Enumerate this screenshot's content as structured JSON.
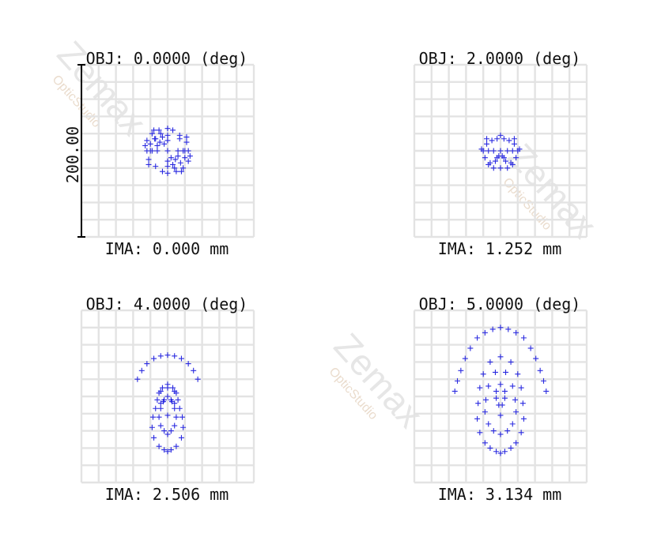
{
  "watermark": {
    "brand": "Zemax",
    "product": "OpticStudio"
  },
  "colors": {
    "points": "#2a2ae0",
    "grid": "#e3e3e3",
    "text": "#111111"
  },
  "chart_data": {
    "type": "scatter",
    "scale_bar_label": "200.00",
    "grid": true,
    "panels": [
      {
        "obj_label": "OBJ: 0.0000 (deg)",
        "ima_label": "IMA: 0.000 mm",
        "x": [
          0,
          -12,
          12,
          -18,
          18,
          -24,
          24,
          0,
          0,
          -6,
          6,
          -9,
          9,
          -15,
          15,
          -20,
          20,
          -8,
          8,
          -18,
          18,
          -24,
          24,
          -16,
          16,
          -10,
          10,
          -20,
          20,
          0,
          0,
          0,
          0,
          -26,
          26,
          -4,
          4,
          -12,
          12,
          -6,
          6,
          -14,
          14,
          -22,
          22,
          -22,
          22,
          -14,
          14
        ],
        "y": [
          0,
          0,
          0,
          0,
          0,
          0,
          0,
          -12,
          12,
          -16,
          16,
          -10,
          10,
          -14,
          14,
          -8,
          8,
          -20,
          20,
          -20,
          20,
          -12,
          12,
          -24,
          24,
          -24,
          24,
          0,
          0,
          -26,
          26,
          -18,
          18,
          -6,
          6,
          -8,
          8,
          -6,
          6,
          24,
          -24,
          18,
          -18,
          10,
          -10,
          16,
          -16,
          -14,
          -14
        ]
      },
      {
        "obj_label": "OBJ: 2.0000 (deg)",
        "ima_label": "IMA: 1.252 mm",
        "x": [
          0,
          -8,
          8,
          -14,
          14,
          -20,
          20,
          -4,
          4,
          -10,
          10,
          -16,
          16,
          -18,
          18,
          -6,
          6,
          -12,
          12,
          -22,
          22,
          0,
          -8,
          8,
          -14,
          14,
          -2,
          2,
          0,
          -16,
          16,
          -4,
          4
        ],
        "y": [
          0,
          0,
          0,
          0,
          0,
          0,
          0,
          -14,
          -14,
          -12,
          -12,
          -8,
          -8,
          8,
          8,
          12,
          12,
          14,
          14,
          -2,
          -2,
          20,
          20,
          20,
          16,
          16,
          6,
          6,
          -18,
          -14,
          -14,
          8,
          8
        ]
      },
      {
        "obj_label": "OBJ: 4.0000 (deg)",
        "ima_label": "IMA: 2.506 mm",
        "x": [
          0,
          -8,
          8,
          -16,
          16,
          -24,
          24,
          -30,
          30,
          -35,
          35,
          0,
          -6,
          6,
          -10,
          10,
          -4,
          4,
          0,
          -8,
          8,
          -8,
          8,
          -14,
          14,
          -17,
          17,
          -18,
          18,
          -16,
          16,
          -10,
          10,
          -4,
          4,
          0,
          0,
          -12,
          12,
          0,
          -5,
          5,
          -8,
          8,
          -10,
          10,
          -8,
          8,
          -4,
          4,
          0
        ],
        "y": [
          -48,
          -47,
          -47,
          -44,
          -44,
          -38,
          -38,
          -30,
          -30,
          -20,
          -20,
          -10,
          -10,
          -10,
          -4,
          -4,
          4,
          4,
          0,
          -6,
          -6,
          8,
          8,
          14,
          14,
          24,
          24,
          36,
          36,
          48,
          48,
          58,
          58,
          62,
          62,
          64,
          22,
          4,
          4,
          -14,
          6,
          6,
          14,
          14,
          24,
          24,
          34,
          34,
          40,
          40,
          44
        ]
      },
      {
        "obj_label": "OBJ: 5.0000 (deg)",
        "ima_label": "IMA: 3.134 mm",
        "x": [
          0,
          -9,
          9,
          -18,
          18,
          -27,
          27,
          -35,
          35,
          -41,
          41,
          -46,
          46,
          -50,
          50,
          -53,
          53,
          0,
          -12,
          12,
          -20,
          20,
          -24,
          24,
          -26,
          26,
          -27,
          27,
          -24,
          24,
          -18,
          18,
          -12,
          12,
          -5,
          5,
          0,
          -6,
          6,
          -14,
          14,
          -17,
          17,
          -18,
          18,
          -14,
          14,
          -8,
          8,
          0,
          0,
          -5,
          5,
          -5,
          5,
          -2,
          2,
          0
        ],
        "y": [
          -80,
          -78,
          -78,
          -74,
          -74,
          -68,
          -68,
          -56,
          -56,
          -44,
          -44,
          -30,
          -30,
          -18,
          -18,
          -6,
          -6,
          -46,
          -40,
          -40,
          -26,
          -26,
          -10,
          -10,
          8,
          8,
          26,
          26,
          42,
          42,
          54,
          54,
          60,
          60,
          64,
          64,
          66,
          -28,
          -28,
          -12,
          -12,
          4,
          4,
          18,
          18,
          32,
          32,
          40,
          40,
          44,
          -14,
          -6,
          -6,
          2,
          2,
          10,
          10,
          22
        ]
      }
    ]
  }
}
